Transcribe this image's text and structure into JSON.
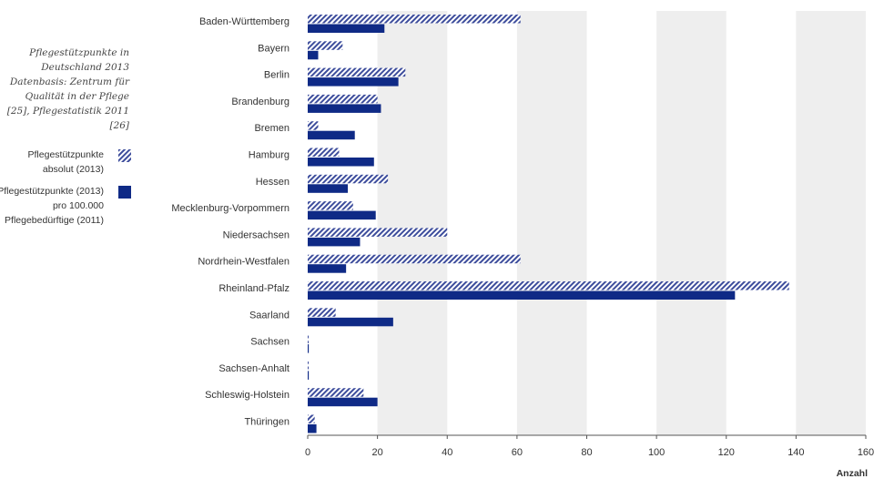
{
  "caption": "Pflegestützpunkte in Deutschland 2013 Datenbasis: Zentrum für Qualität in der Pflege [25], Pflegestatistik 2011 [26]",
  "chart_data": {
    "type": "bar",
    "orientation": "horizontal",
    "categories": [
      "Baden-Württemberg",
      "Bayern",
      "Berlin",
      "Brandenburg",
      "Bremen",
      "Hamburg",
      "Hessen",
      "Mecklenburg-Vorpommern",
      "Niedersachsen",
      "Nordrhein-Westfalen",
      "Rheinland-Pfalz",
      "Saarland",
      "Sachsen",
      "Sachsen-Anhalt",
      "Schleswig-Holstein",
      "Thüringen"
    ],
    "series": [
      {
        "name": "Pflegestützpunkte absolut (2013)",
        "pattern": "hatched",
        "color": "#3d4d9c",
        "values": [
          61,
          10,
          28,
          20,
          3,
          9,
          23,
          13,
          40,
          61,
          138,
          8,
          0,
          0,
          16,
          2
        ]
      },
      {
        "name": "Pflegestützpunkte (2013) pro 100.000 Pflegebedürftige (2011)",
        "pattern": "solid",
        "color": "#0f2a86",
        "values": [
          22,
          3,
          26,
          21,
          13.5,
          19,
          11.5,
          19.5,
          15,
          11,
          122.5,
          24.5,
          0.3,
          0.3,
          20,
          2.5
        ]
      }
    ],
    "xlabel": "Anzahl",
    "xlim": [
      0,
      160
    ],
    "xticks": [
      0,
      20,
      40,
      60,
      80,
      100,
      120,
      140,
      160
    ],
    "background_bands": "alternating grey columns"
  }
}
